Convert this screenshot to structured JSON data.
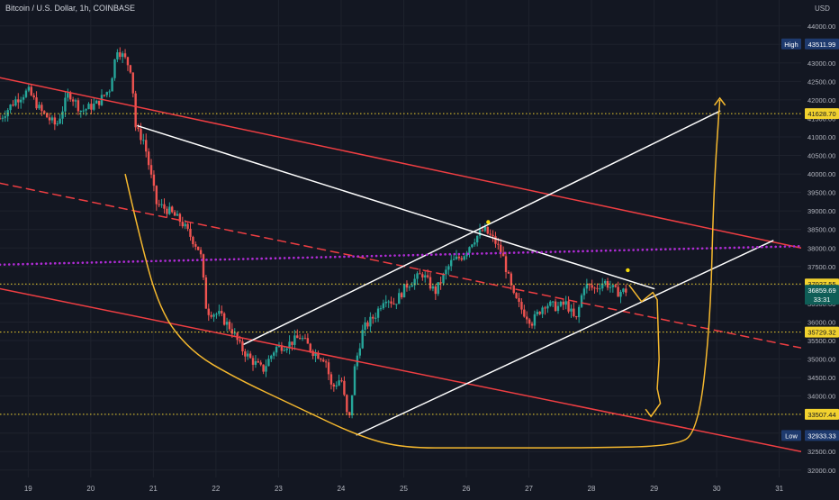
{
  "header": {
    "symbol_title": "Bitcoin / U.S. Dollar, 1h, COINBASE",
    "currency": "USD"
  },
  "chart_data": {
    "type": "candlestick",
    "title": "Bitcoin / U.S. Dollar, 1h, COINBASE",
    "ylabel": "USD",
    "xlabel": "",
    "ylim": [
      31800,
      44700
    ],
    "xlim": [
      18.55,
      31.35
    ],
    "grid": true,
    "y_ticks": [
      32000,
      32500,
      33000,
      33500,
      34000,
      34500,
      35000,
      35500,
      36000,
      36500,
      37000,
      37500,
      38000,
      38500,
      39000,
      39500,
      40000,
      40500,
      41000,
      41500,
      42000,
      42500,
      43000,
      43500,
      44000
    ],
    "y_tick_labels": [
      "32000.00",
      "32500.00",
      "33000.00",
      "33500.00",
      "34000.00",
      "34500.00",
      "35000.00",
      "35500.00",
      "36000.00",
      "36500.00",
      "37000.00",
      "37500.00",
      "38000.00",
      "38500.00",
      "39000.00",
      "39500.00",
      "40000.00",
      "40500.00",
      "41000.00",
      "41500.00",
      "42000.00",
      "42500.00",
      "43000.00",
      "43500.00",
      "44000.00"
    ],
    "x_ticks": [
      19,
      20,
      21,
      22,
      23,
      24,
      25,
      26,
      27,
      28,
      29,
      30,
      31
    ],
    "x_tick_labels": [
      "19",
      "20",
      "21",
      "22",
      "23",
      "24",
      "25",
      "26",
      "27",
      "28",
      "29",
      "30",
      "31"
    ],
    "price_path": [
      [
        18.55,
        41500
      ],
      [
        18.8,
        42000
      ],
      [
        19.0,
        42250
      ],
      [
        19.2,
        41700
      ],
      [
        19.45,
        41300
      ],
      [
        19.65,
        42200
      ],
      [
        19.85,
        41700
      ],
      [
        20.1,
        41900
      ],
      [
        20.3,
        42300
      ],
      [
        20.42,
        43400
      ],
      [
        20.55,
        43100
      ],
      [
        20.65,
        42800
      ],
      [
        20.72,
        41200
      ],
      [
        20.85,
        40900
      ],
      [
        21.05,
        39200
      ],
      [
        21.25,
        39000
      ],
      [
        21.45,
        38700
      ],
      [
        21.6,
        38300
      ],
      [
        21.75,
        37900
      ],
      [
        21.85,
        36300
      ],
      [
        22.05,
        36200
      ],
      [
        22.25,
        35800
      ],
      [
        22.4,
        35300
      ],
      [
        22.55,
        35000
      ],
      [
        22.75,
        34700
      ],
      [
        22.95,
        35300
      ],
      [
        23.15,
        35400
      ],
      [
        23.35,
        35600
      ],
      [
        23.55,
        35200
      ],
      [
        23.75,
        35000
      ],
      [
        23.85,
        34200
      ],
      [
        24.0,
        34500
      ],
      [
        24.12,
        33200
      ],
      [
        24.22,
        34800
      ],
      [
        24.35,
        35800
      ],
      [
        24.55,
        36200
      ],
      [
        24.7,
        36700
      ],
      [
        24.85,
        36500
      ],
      [
        25.05,
        37000
      ],
      [
        25.3,
        37300
      ],
      [
        25.5,
        36800
      ],
      [
        25.75,
        37600
      ],
      [
        25.95,
        37800
      ],
      [
        26.1,
        38200
      ],
      [
        26.28,
        38500
      ],
      [
        26.45,
        38200
      ],
      [
        26.58,
        37800
      ],
      [
        26.75,
        36700
      ],
      [
        26.9,
        36300
      ],
      [
        27.05,
        36000
      ],
      [
        27.25,
        36500
      ],
      [
        27.45,
        36400
      ],
      [
        27.6,
        36500
      ],
      [
        27.75,
        36000
      ],
      [
        27.88,
        37000
      ],
      [
        28.05,
        36900
      ],
      [
        28.2,
        37100
      ],
      [
        28.4,
        36800
      ],
      [
        28.58,
        36860
      ]
    ],
    "trendlines": [
      {
        "name": "descending channel upper",
        "color": "#ef3e42",
        "style": "solid",
        "points": [
          [
            18.55,
            42600
          ],
          [
            31.35,
            38000
          ]
        ]
      },
      {
        "name": "descending channel mid",
        "color": "#ef3e42",
        "style": "dashed",
        "points": [
          [
            18.55,
            39750
          ],
          [
            31.35,
            35300
          ]
        ]
      },
      {
        "name": "descending channel lower",
        "color": "#ef3e42",
        "style": "solid",
        "points": [
          [
            18.55,
            36900
          ],
          [
            31.35,
            32500
          ]
        ]
      },
      {
        "name": "falling trend line",
        "color": "#ffffff",
        "style": "solid",
        "points": [
          [
            20.75,
            41300
          ],
          [
            29.0,
            36900
          ]
        ]
      },
      {
        "name": "rising channel upper",
        "color": "#ffffff",
        "style": "solid",
        "points": [
          [
            22.45,
            35400
          ],
          [
            30.05,
            41700
          ]
        ]
      },
      {
        "name": "rising channel lower",
        "color": "#ffffff",
        "style": "solid",
        "points": [
          [
            24.25,
            32950
          ],
          [
            30.9,
            38200
          ]
        ]
      },
      {
        "name": "purple dotted level",
        "color": "#b02cd6",
        "style": "dotted",
        "points": [
          [
            18.55,
            37550
          ],
          [
            31.35,
            38050
          ]
        ]
      }
    ],
    "horizontal_levels": [
      {
        "value": 41628.7,
        "label": "41628.70",
        "color": "#f2d22e"
      },
      {
        "value": 37027.55,
        "label": "37027.55",
        "color": "#f2d22e"
      },
      {
        "value": 35729.32,
        "label": "35729.32",
        "color": "#f2d22e"
      },
      {
        "value": 33507.44,
        "label": "33507.44",
        "color": "#f2d22e"
      }
    ],
    "price_markers": [
      {
        "tag": "High",
        "value": 43511.99,
        "label": "43511.99",
        "bg": "#1e3a6e"
      },
      {
        "tag": "Low",
        "value": 32933.33,
        "label": "32933.33",
        "bg": "#1e3a6e"
      },
      {
        "tag": "",
        "value": 36859.69,
        "label": "36859.69",
        "sublabel": "33:31",
        "bg": "#0f5e57"
      }
    ],
    "projection_path": [
      [
        20.55,
        40000
      ],
      [
        20.75,
        38500
      ],
      [
        21.1,
        36300
      ],
      [
        21.6,
        35200
      ],
      [
        22.3,
        34500
      ],
      [
        23.3,
        33700
      ],
      [
        24.3,
        32900
      ],
      [
        25.0,
        32600
      ],
      [
        26.0,
        32600
      ],
      [
        28.0,
        32600
      ],
      [
        29.3,
        32650
      ],
      [
        29.7,
        33000
      ],
      [
        29.9,
        36000
      ],
      [
        29.95,
        39500
      ],
      [
        30.05,
        42000
      ]
    ],
    "projection_arrows": [
      [
        30.05,
        42050
      ],
      [
        28.95,
        33450
      ]
    ]
  }
}
